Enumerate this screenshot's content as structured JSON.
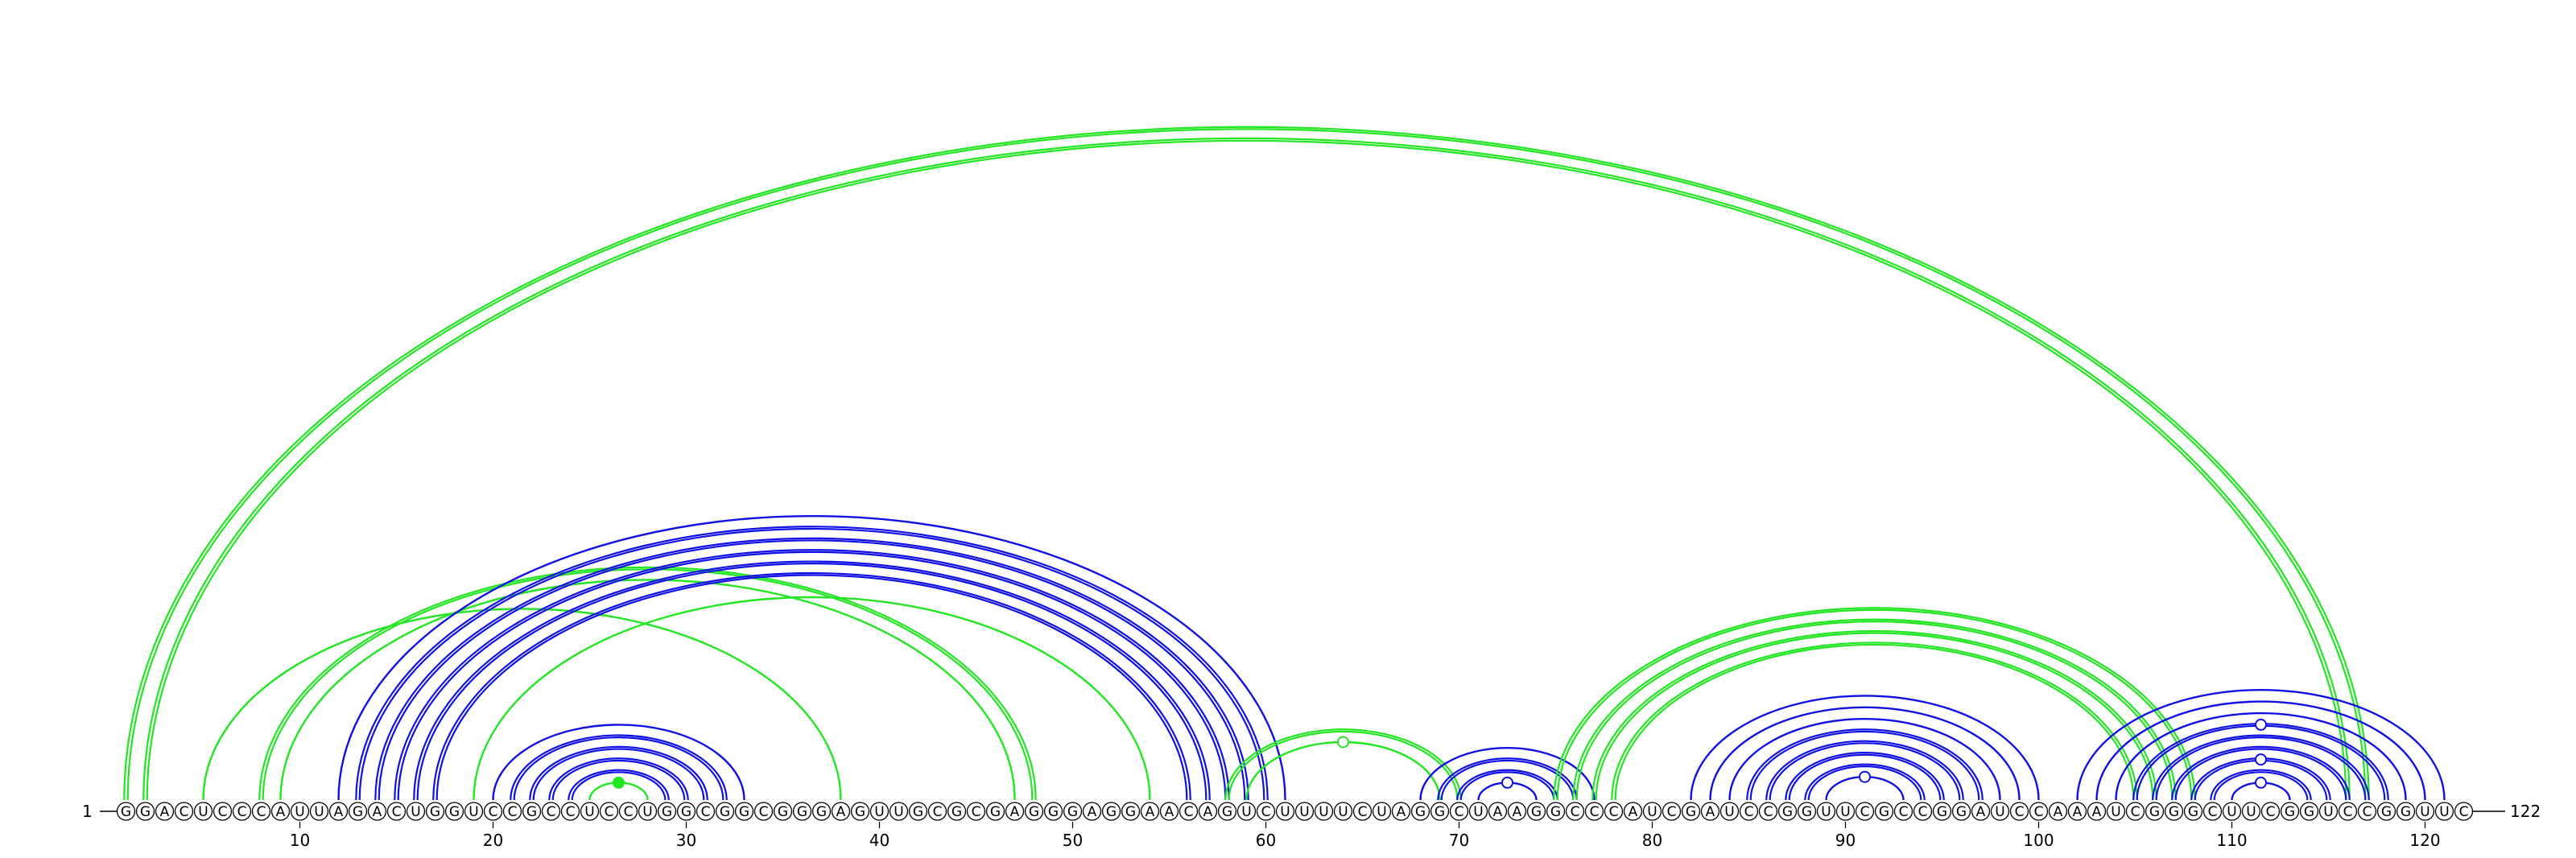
{
  "diagram": {
    "type": "rna-arc-diagram",
    "start_label": "1",
    "end_label": "122",
    "sequence": "GGACUCCCAUUAGACUGGUCCGCCUCCUGGCGGCGGGAGUUGCGCGAGGGAGGAACAGUCUUUUCUAGGCUAAGGCCCAUCGAUCCGGUUCGCCGGAUCCAAAUCGGGCUUCGGUCCGGUUC",
    "tick_labels": [
      "10",
      "20",
      "30",
      "40",
      "50",
      "60",
      "70",
      "80",
      "90",
      "100",
      "110",
      "120"
    ],
    "colors": {
      "blue": "#1010e6",
      "green": "#22e622"
    },
    "arcs": [
      {
        "i": 1,
        "j": 117,
        "color": "green",
        "lines": 2
      },
      {
        "i": 2,
        "j": 116,
        "color": "green",
        "lines": 2
      },
      {
        "i": 5,
        "j": 38,
        "color": "green",
        "lines": 1
      },
      {
        "i": 8,
        "j": 48,
        "color": "green",
        "lines": 2
      },
      {
        "i": 9,
        "j": 47,
        "color": "green",
        "lines": 1
      },
      {
        "i": 12,
        "j": 61,
        "color": "blue",
        "lines": 1
      },
      {
        "i": 13,
        "j": 60,
        "color": "blue",
        "lines": 2
      },
      {
        "i": 14,
        "j": 59,
        "color": "blue",
        "lines": 2
      },
      {
        "i": 15,
        "j": 58,
        "color": "blue",
        "lines": 2
      },
      {
        "i": 16,
        "j": 57,
        "color": "blue",
        "lines": 2
      },
      {
        "i": 17,
        "j": 56,
        "color": "blue",
        "lines": 2
      },
      {
        "i": 19,
        "j": 54,
        "color": "green",
        "lines": 1
      },
      {
        "i": 20,
        "j": 33,
        "color": "blue",
        "lines": 1
      },
      {
        "i": 21,
        "j": 32,
        "color": "blue",
        "lines": 2
      },
      {
        "i": 22,
        "j": 31,
        "color": "blue",
        "lines": 2
      },
      {
        "i": 23,
        "j": 30,
        "color": "blue",
        "lines": 2
      },
      {
        "i": 24,
        "j": 29,
        "color": "blue",
        "lines": 2
      },
      {
        "i": 25,
        "j": 28,
        "color": "green",
        "lines": 1
      },
      {
        "i": 58,
        "j": 70,
        "color": "green",
        "lines": 2
      },
      {
        "i": 59,
        "j": 69,
        "color": "green",
        "lines": 1
      },
      {
        "i": 68,
        "j": 77,
        "color": "blue",
        "lines": 1
      },
      {
        "i": 69,
        "j": 76,
        "color": "blue",
        "lines": 2
      },
      {
        "i": 70,
        "j": 75,
        "color": "blue",
        "lines": 2
      },
      {
        "i": 71,
        "j": 74,
        "color": "blue",
        "lines": 1
      },
      {
        "i": 75,
        "j": 108,
        "color": "green",
        "lines": 2
      },
      {
        "i": 76,
        "j": 107,
        "color": "green",
        "lines": 2
      },
      {
        "i": 77,
        "j": 106,
        "color": "green",
        "lines": 2
      },
      {
        "i": 78,
        "j": 105,
        "color": "green",
        "lines": 2
      },
      {
        "i": 82,
        "j": 100,
        "color": "blue",
        "lines": 1
      },
      {
        "i": 83,
        "j": 99,
        "color": "blue",
        "lines": 1
      },
      {
        "i": 84,
        "j": 98,
        "color": "blue",
        "lines": 1
      },
      {
        "i": 85,
        "j": 97,
        "color": "blue",
        "lines": 2
      },
      {
        "i": 86,
        "j": 96,
        "color": "blue",
        "lines": 2
      },
      {
        "i": 87,
        "j": 95,
        "color": "blue",
        "lines": 2
      },
      {
        "i": 88,
        "j": 94,
        "color": "blue",
        "lines": 2
      },
      {
        "i": 89,
        "j": 93,
        "color": "blue",
        "lines": 1
      },
      {
        "i": 102,
        "j": 121,
        "color": "blue",
        "lines": 1
      },
      {
        "i": 103,
        "j": 120,
        "color": "blue",
        "lines": 1
      },
      {
        "i": 104,
        "j": 119,
        "color": "blue",
        "lines": 1
      },
      {
        "i": 105,
        "j": 118,
        "color": "blue",
        "lines": 2
      },
      {
        "i": 106,
        "j": 117,
        "color": "blue",
        "lines": 2
      },
      {
        "i": 107,
        "j": 116,
        "color": "blue",
        "lines": 2
      },
      {
        "i": 108,
        "j": 115,
        "color": "blue",
        "lines": 2
      },
      {
        "i": 109,
        "j": 114,
        "color": "blue",
        "lines": 2
      },
      {
        "i": 110,
        "j": 113,
        "color": "blue",
        "lines": 1
      }
    ],
    "noncanonical_markers": [
      {
        "i": 25,
        "j": 28,
        "color": "green",
        "filled": true
      },
      {
        "i": 59,
        "j": 69,
        "color": "green",
        "filled": false
      },
      {
        "i": 71,
        "j": 74,
        "color": "blue",
        "filled": false
      },
      {
        "i": 89,
        "j": 93,
        "color": "blue",
        "filled": false
      },
      {
        "i": 110,
        "j": 113,
        "color": "blue",
        "filled": false
      },
      {
        "i": 108,
        "j": 115,
        "color": "blue",
        "filled": false
      },
      {
        "i": 105,
        "j": 118,
        "color": "blue",
        "filled": false
      }
    ]
  }
}
